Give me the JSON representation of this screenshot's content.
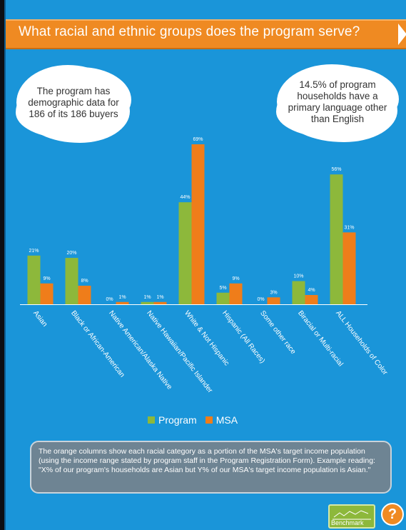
{
  "header": {
    "title": "What racial and ethnic groups does the program serve?"
  },
  "callouts": {
    "left": "The program has demographic data for 186 of its 186 buyers",
    "right": "14.5% of program households have a primary language other than English"
  },
  "chart_data": {
    "type": "bar",
    "categories": [
      "Asian",
      "Black or African-American",
      "Native American/Alaska Native",
      "Native Hawaiian/Pacific Islander",
      "White & Not Hispanic",
      "Hispanic (All Races)",
      "Some other race",
      "Biracial or Multi-racial",
      "ALL Households of Color"
    ],
    "series": [
      {
        "name": "Program",
        "color": "#8db83b",
        "values": [
          21,
          20,
          0,
          1,
          44,
          5,
          0,
          10,
          56
        ],
        "labels": [
          "21%",
          "20%",
          "0%",
          "1%",
          "44%",
          "5%",
          "0%",
          "10%",
          "56%"
        ]
      },
      {
        "name": "MSA",
        "color": "#ef7d1a",
        "values": [
          9,
          8,
          1,
          1,
          69,
          9,
          3,
          4,
          31
        ],
        "labels": [
          "9%",
          "8%",
          "1%",
          "1%",
          "69%",
          "9%",
          "3%",
          "4%",
          "31%"
        ]
      }
    ],
    "ylim": [
      0,
      69
    ],
    "legend_placement": "bottom",
    "grid": false
  },
  "legend": {
    "program": "Program",
    "msa": "MSA"
  },
  "note": "The orange columns show each racial category as a portion of the MSA's target income population (using the income range stated by program staff in the Program Registration Form).  Example reading: \"X% of our program's households are Asian but Y% of our MSA's target income population is Asian.\"",
  "buttons": {
    "benchmark": "Benchmark",
    "help": "?"
  }
}
